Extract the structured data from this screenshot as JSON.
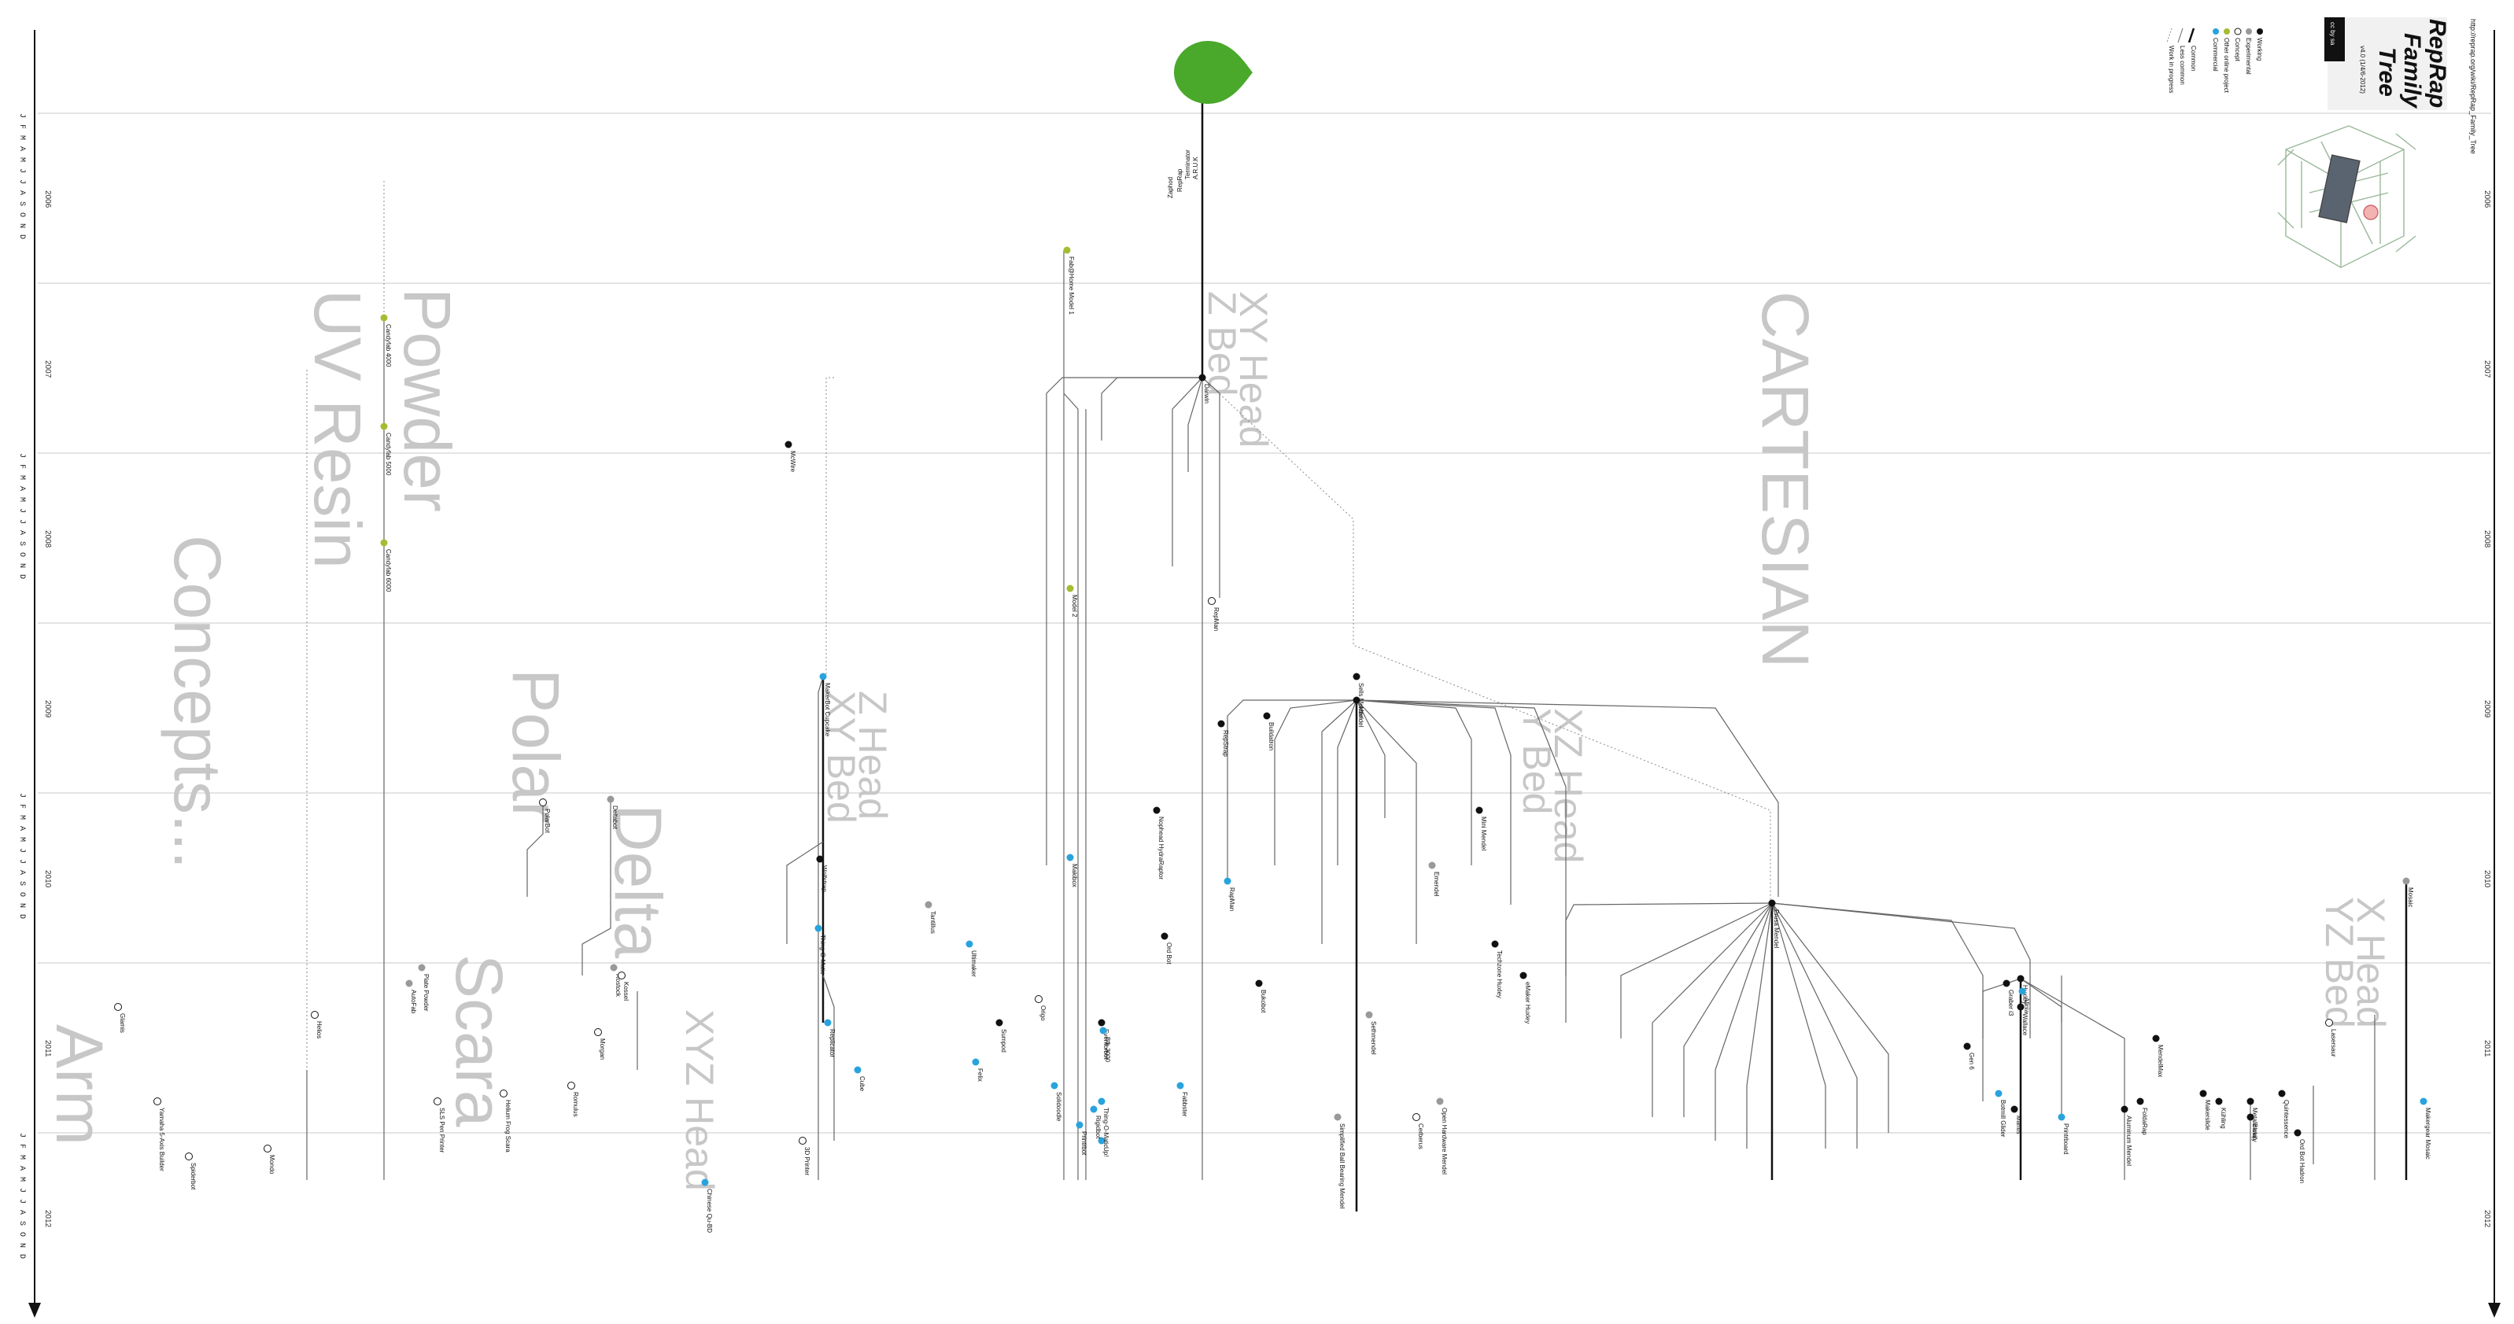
{
  "title": {
    "line1": "RepRap",
    "line2": "Family",
    "line3": "Tree",
    "version": "v4.0 (1/4/6-2012)",
    "url": "http://reprap.org/wiki/RepRap_Family_Tree",
    "license": "cc by sa"
  },
  "legend": {
    "items": [
      {
        "label": "Working",
        "kind": "working"
      },
      {
        "label": "Experimental",
        "kind": "experimental"
      },
      {
        "label": "Concept",
        "kind": "concept"
      },
      {
        "label": "Other online project",
        "kind": "other"
      },
      {
        "label": "Commercial",
        "kind": "commercial"
      }
    ],
    "lines": [
      {
        "label": "Common",
        "kind": "common"
      },
      {
        "label": "Less common",
        "kind": "less"
      },
      {
        "label": "Work in progress",
        "kind": "wip"
      }
    ]
  },
  "colors": {
    "working": "#111111",
    "experimental": "#999999",
    "concept": "#ffffff",
    "other": "#a3bd33",
    "commercial": "#29a3dc",
    "root": "#4aa82b",
    "category_text": "#c7c7c7",
    "year_line": "#c8c8c8"
  },
  "years": [
    "2006",
    "2007",
    "2008",
    "2009",
    "2010",
    "2011",
    "2012"
  ],
  "months": "J F M A M J J A S O N D",
  "categories": [
    {
      "text": "Concepts..."
    },
    {
      "text": "UV Resin"
    },
    {
      "text": "Powder"
    },
    {
      "text": "Polar"
    },
    {
      "text": "Delta"
    },
    {
      "text": "Scara"
    },
    {
      "text": "XYZ Head"
    },
    {
      "text": "Arm"
    },
    {
      "text": "Z Head",
      "sub": "XY Bed"
    },
    {
      "text": "XY Head",
      "sub": "Z Bed"
    },
    {
      "text": "CARTESIAN"
    },
    {
      "text": "XZ Head",
      "sub": "Y Bed"
    },
    {
      "text": "X Head",
      "sub": "YZ Bed"
    }
  ],
  "root_labels": [
    "A.R.U.K",
    "Terminator",
    "RepRap",
    "Zaphod"
  ],
  "nodes": [
    {
      "label": "Darwin",
      "kind": "working"
    },
    {
      "label": "Mendel",
      "kind": "working"
    },
    {
      "label": "Prusa Mendel",
      "kind": "working"
    },
    {
      "label": "Huxley",
      "kind": "working"
    },
    {
      "label": "Wallace",
      "kind": "working"
    },
    {
      "label": "MakerBot Cupcake",
      "kind": "commercial"
    },
    {
      "label": "Thing-O-Matic",
      "kind": "commercial"
    },
    {
      "label": "Replicator",
      "kind": "commercial"
    },
    {
      "label": "Ultimaker",
      "kind": "commercial"
    },
    {
      "label": "RepMan",
      "kind": "concept"
    },
    {
      "label": "Sells Mendel",
      "kind": "working"
    },
    {
      "label": "Tantillus",
      "kind": "experimental"
    },
    {
      "label": "Rostock",
      "kind": "experimental"
    },
    {
      "label": "Morgan",
      "kind": "concept"
    },
    {
      "label": "Helios",
      "kind": "concept"
    },
    {
      "label": "Wolfstrap",
      "kind": "working"
    },
    {
      "label": "Printrbot",
      "kind": "commercial"
    },
    {
      "label": "Mini Mendel",
      "kind": "working"
    },
    {
      "label": "Eventorbot",
      "kind": "working"
    },
    {
      "label": "Makibox",
      "kind": "commercial"
    },
    {
      "label": "Fabbster",
      "kind": "commercial"
    },
    {
      "label": "RapMan",
      "kind": "commercial"
    },
    {
      "label": "Up!",
      "kind": "commercial"
    },
    {
      "label": "Cube",
      "kind": "commercial"
    },
    {
      "label": "Felix",
      "kind": "commercial"
    },
    {
      "label": "Mosaic",
      "kind": "experimental"
    },
    {
      "label": "MendelMax",
      "kind": "working"
    },
    {
      "label": "Sumpod",
      "kind": "working"
    },
    {
      "label": "Origo",
      "kind": "concept"
    },
    {
      "label": "RepStrap",
      "kind": "working"
    },
    {
      "label": "PolarBot",
      "kind": "concept"
    },
    {
      "label": "Deltabot",
      "kind": "experimental"
    },
    {
      "label": "Kossel",
      "kind": "concept"
    },
    {
      "label": "Romulus",
      "kind": "concept"
    },
    {
      "label": "Fab@Home Model 1",
      "kind": "other"
    },
    {
      "label": "Model 2",
      "kind": "other"
    },
    {
      "label": "Candyfab 4000",
      "kind": "other"
    },
    {
      "label": "Candyfab 5000",
      "kind": "other"
    },
    {
      "label": "Candyfab 6000",
      "kind": "other"
    },
    {
      "label": "McWire",
      "kind": "working"
    },
    {
      "label": "Solidoodle",
      "kind": "commercial"
    },
    {
      "label": "Rigidbot",
      "kind": "commercial"
    },
    {
      "label": "Afinia",
      "kind": "commercial"
    },
    {
      "label": "Makergear Mosaic",
      "kind": "commercial"
    },
    {
      "label": "Lasersaur",
      "kind": "concept"
    },
    {
      "label": "Gen 6",
      "kind": "working"
    },
    {
      "label": "Graber i3",
      "kind": "working"
    },
    {
      "label": "Bfb 3000",
      "kind": "commercial"
    },
    {
      "label": "Thing-O-Matic",
      "kind": "commercial"
    },
    {
      "label": "Ord Bot",
      "kind": "working"
    },
    {
      "label": "Nophead HydraRaptor",
      "kind": "working"
    },
    {
      "label": "Buildatron",
      "kind": "working"
    },
    {
      "label": "Bukobot",
      "kind": "working"
    },
    {
      "label": "Botmill Glider",
      "kind": "commercial"
    },
    {
      "label": "Emendel",
      "kind": "experimental"
    },
    {
      "label": "Sethmendel",
      "kind": "experimental"
    },
    {
      "label": "Cerberus",
      "kind": "concept"
    },
    {
      "label": "FoldaRap",
      "kind": "working"
    },
    {
      "label": "Metalicarap",
      "kind": "working"
    },
    {
      "label": "Quintessence",
      "kind": "working"
    },
    {
      "label": "Aluminum Mendel",
      "kind": "working"
    },
    {
      "label": "Mantis",
      "kind": "working"
    },
    {
      "label": "Printrboard",
      "kind": "commercial"
    },
    {
      "label": "Open Hardware Mendel",
      "kind": "experimental"
    },
    {
      "label": "Techzone Huxley",
      "kind": "working"
    },
    {
      "label": "eMaker Huxley",
      "kind": "working"
    },
    {
      "label": "Simplified Ball Bearing Mendel",
      "kind": "experimental"
    },
    {
      "label": "3D Printer",
      "kind": "concept"
    },
    {
      "label": "Yamaha 5-Axis Builder",
      "kind": "concept"
    },
    {
      "label": "SLS Pen Printer",
      "kind": "concept"
    },
    {
      "label": "Plate Powder",
      "kind": "experimental"
    },
    {
      "label": "AutoFab",
      "kind": "experimental"
    },
    {
      "label": "Helium Frog Scara",
      "kind": "concept"
    },
    {
      "label": "Chinese Qu-BD",
      "kind": "commercial"
    },
    {
      "label": "Glamis",
      "kind": "concept"
    },
    {
      "label": "Spiderbot",
      "kind": "concept"
    },
    {
      "label": "Mondo",
      "kind": "concept"
    },
    {
      "label": "Ord Bot Hadron",
      "kind": "working"
    },
    {
      "label": "Blokify",
      "kind": "working"
    },
    {
      "label": "Kühling",
      "kind": "working"
    },
    {
      "label": "Makerslide",
      "kind": "working"
    }
  ]
}
